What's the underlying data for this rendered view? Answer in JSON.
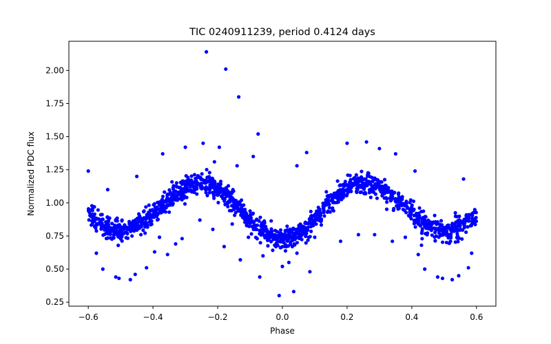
{
  "chart_data": {
    "type": "scatter",
    "title": "TIC 0240911239, period 0.4124 days",
    "xlabel": "Phase",
    "ylabel": "Normalized PDC flux",
    "xlim": [
      -0.66,
      0.66
    ],
    "ylim": [
      0.22,
      2.22
    ],
    "xticks": [
      -0.6,
      -0.4,
      -0.2,
      0.0,
      0.2,
      0.4,
      0.6
    ],
    "xtick_labels": [
      "−0.6",
      "−0.4",
      "−0.2",
      "0.0",
      "0.2",
      "0.4",
      "0.6"
    ],
    "yticks": [
      0.25,
      0.5,
      0.75,
      1.0,
      1.25,
      1.5,
      1.75,
      2.0
    ],
    "ytick_labels": [
      "0.25",
      "0.50",
      "0.75",
      "1.00",
      "1.25",
      "1.50",
      "1.75",
      "2.00"
    ],
    "grid": false,
    "marker_color": "#0000ff",
    "series": [
      {
        "model": {
          "x_range": [
            -0.6,
            0.6
          ],
          "points_per_unit_phase": 1300,
          "scatter_sigma": 0.04,
          "minima": [
            {
              "phase": 0.0,
              "depth": 0.73
            },
            {
              "phase": -0.5,
              "depth": 0.79
            },
            {
              "phase": 0.5,
              "depth": 0.79
            }
          ],
          "maxima_level": 1.15
        },
        "outliers": [
          [
            -0.235,
            2.14
          ],
          [
            -0.175,
            2.01
          ],
          [
            -0.135,
            1.8
          ],
          [
            -0.075,
            1.52
          ],
          [
            -0.6,
            1.24
          ],
          [
            -0.54,
            1.1
          ],
          [
            -0.45,
            1.2
          ],
          [
            -0.37,
            1.37
          ],
          [
            -0.3,
            1.42
          ],
          [
            -0.245,
            1.45
          ],
          [
            -0.195,
            1.42
          ],
          [
            -0.21,
            1.31
          ],
          [
            -0.14,
            1.28
          ],
          [
            -0.09,
            1.35
          ],
          [
            0.045,
            1.28
          ],
          [
            0.2,
            1.45
          ],
          [
            0.26,
            1.46
          ],
          [
            0.3,
            1.41
          ],
          [
            0.35,
            1.37
          ],
          [
            0.41,
            1.24
          ],
          [
            0.075,
            1.38
          ],
          [
            0.56,
            1.18
          ],
          [
            -0.575,
            0.62
          ],
          [
            -0.555,
            0.5
          ],
          [
            -0.515,
            0.44
          ],
          [
            -0.505,
            0.43
          ],
          [
            -0.47,
            0.42
          ],
          [
            -0.455,
            0.46
          ],
          [
            -0.42,
            0.51
          ],
          [
            -0.395,
            0.63
          ],
          [
            -0.38,
            0.74
          ],
          [
            -0.355,
            0.61
          ],
          [
            -0.33,
            0.69
          ],
          [
            -0.31,
            0.73
          ],
          [
            -0.255,
            0.87
          ],
          [
            -0.215,
            0.8
          ],
          [
            -0.18,
            0.67
          ],
          [
            -0.155,
            0.84
          ],
          [
            -0.13,
            0.57
          ],
          [
            -0.105,
            0.74
          ],
          [
            -0.07,
            0.44
          ],
          [
            -0.06,
            0.6
          ],
          [
            -0.02,
            0.67
          ],
          [
            -0.01,
            0.3
          ],
          [
            0.0,
            0.52
          ],
          [
            0.02,
            0.55
          ],
          [
            0.035,
            0.33
          ],
          [
            0.045,
            0.62
          ],
          [
            0.085,
            0.48
          ],
          [
            0.1,
            0.74
          ],
          [
            0.18,
            0.71
          ],
          [
            0.235,
            0.76
          ],
          [
            0.285,
            0.76
          ],
          [
            0.34,
            0.71
          ],
          [
            0.38,
            0.74
          ],
          [
            0.43,
            0.68
          ],
          [
            0.42,
            0.61
          ],
          [
            0.44,
            0.5
          ],
          [
            0.48,
            0.44
          ],
          [
            0.495,
            0.43
          ],
          [
            0.525,
            0.42
          ],
          [
            0.545,
            0.45
          ],
          [
            0.575,
            0.51
          ],
          [
            0.585,
            0.62
          ]
        ]
      }
    ]
  }
}
